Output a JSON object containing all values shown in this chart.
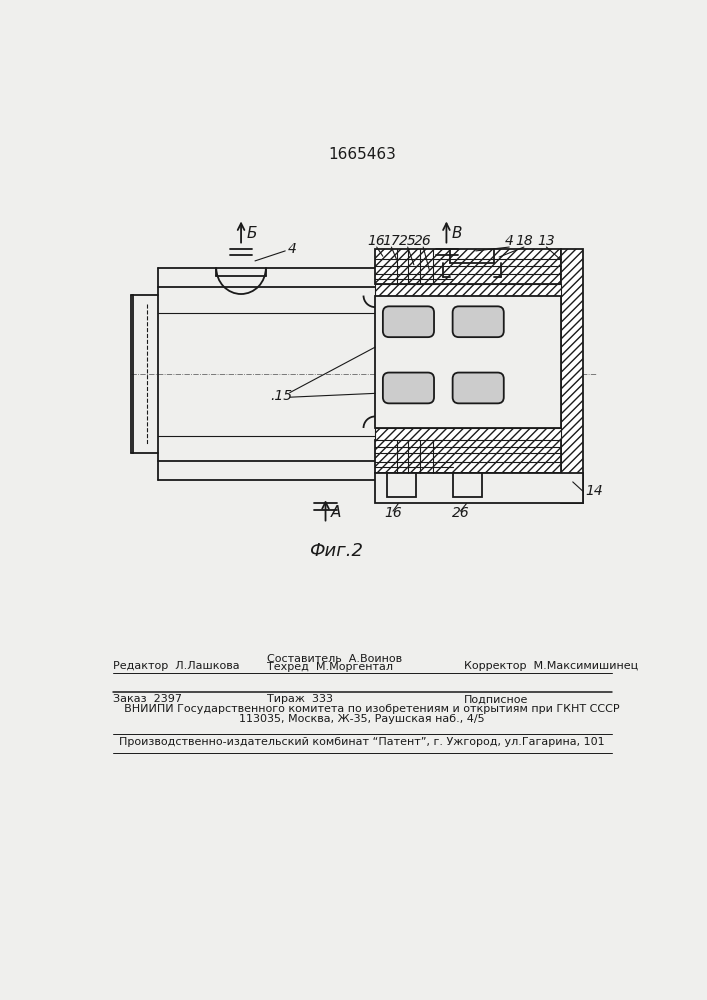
{
  "bg_color": "#efefed",
  "line_color": "#1a1a1a",
  "patent_number": "1665463",
  "fig_label": "Фиг.2",
  "footer": {
    "editor": "Редактор  Л.Лашкова",
    "composer": "Составитель  А.Воинов",
    "techred": "Техред  М.Моргентал",
    "corrector": "Корректор  М.Максимишинец",
    "order": "Заказ  2397",
    "tirazh": "Тираж  333",
    "podpisnoe": "Подписное",
    "vniip1": " ВНИИПИ Государственного комитета по изобретениям и открытиям при ГКНТ СССР",
    "vniip2": "113035, Москва, Ж-35, Раушская наб., 4/5",
    "patent_line": "Производственно-издательский комбинат “Патент”, г. Ужгород, ул.Гагарина, 101"
  }
}
